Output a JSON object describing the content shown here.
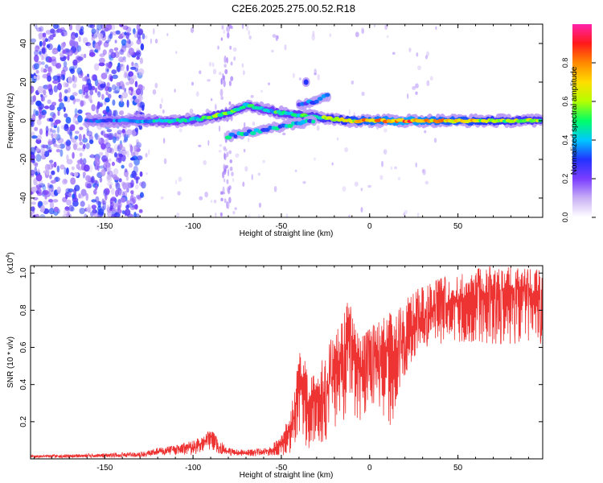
{
  "title": "C2E6.2025.275.00.52.R18",
  "chart_data": [
    {
      "type": "heatmap",
      "title": "C2E6.2025.275.00.52.R18",
      "xlabel": "Height of straight line (km)",
      "ylabel": "Frequency (Hz)",
      "xlim": [
        -192,
        98
      ],
      "ylim": [
        -50,
        50
      ],
      "xticks": [
        -150,
        -100,
        -50,
        0,
        50
      ],
      "yticks": [
        -40,
        -20,
        0,
        20,
        40
      ],
      "colorbar": {
        "label": "Normalized spectral amplitude",
        "range": [
          0.0,
          1.0
        ],
        "ticks": [
          0.0,
          0.2,
          0.4,
          0.6,
          0.8
        ],
        "colors": [
          "#ffffff",
          "#c9b0f5",
          "#7a3dff",
          "#2233ff",
          "#00c8ff",
          "#00ff66",
          "#b4ff00",
          "#ffdd00",
          "#ff8800",
          "#ff1a1a",
          "#ff22aa"
        ]
      },
      "ridge": [
        {
          "x": -160,
          "y": 0,
          "amp": 0.3
        },
        {
          "x": -140,
          "y": 0,
          "amp": 0.35
        },
        {
          "x": -125,
          "y": 0,
          "amp": 0.4
        },
        {
          "x": -110,
          "y": 0,
          "amp": 0.45
        },
        {
          "x": -95,
          "y": 1,
          "amp": 0.5
        },
        {
          "x": -80,
          "y": 4,
          "amp": 0.55
        },
        {
          "x": -70,
          "y": 8,
          "amp": 0.5
        },
        {
          "x": -60,
          "y": 6,
          "amp": 0.45
        },
        {
          "x": -50,
          "y": 4,
          "amp": 0.5
        },
        {
          "x": -40,
          "y": 3,
          "amp": 0.5
        },
        {
          "x": -30,
          "y": 2,
          "amp": 0.55
        },
        {
          "x": -20,
          "y": 1,
          "amp": 0.6
        },
        {
          "x": -10,
          "y": 0,
          "amp": 0.7
        },
        {
          "x": 0,
          "y": 0,
          "amp": 0.75
        },
        {
          "x": 20,
          "y": 0,
          "amp": 0.85
        },
        {
          "x": 40,
          "y": 0,
          "amp": 0.75
        },
        {
          "x": 60,
          "y": 0,
          "amp": 0.7
        },
        {
          "x": 80,
          "y": 0,
          "amp": 0.6
        },
        {
          "x": 98,
          "y": 0,
          "amp": 0.55
        }
      ],
      "branches": [
        {
          "points": [
            {
              "x": -80,
              "y": -8
            },
            {
              "x": -60,
              "y": -5
            },
            {
              "x": -45,
              "y": -2
            },
            {
              "x": -30,
              "y": 0
            }
          ],
          "amp": 0.45
        },
        {
          "points": [
            {
              "x": -40,
              "y": 8
            },
            {
              "x": -30,
              "y": 10
            },
            {
              "x": -22,
              "y": 14
            }
          ],
          "amp": 0.35
        },
        {
          "points": [
            {
              "x": -36,
              "y": 20
            }
          ],
          "amp": 0.3
        }
      ],
      "noise_region": {
        "xmin": -192,
        "xmax": -128,
        "amp": 0.25
      }
    },
    {
      "type": "line",
      "xlabel": "Height of straight line (km)",
      "ylabel": "SNR (10 * v/v)",
      "y_multiplier": "(x10",
      "y_multiplier_exponent": "4",
      "y_multiplier_close": ")",
      "xlim": [
        -192,
        98
      ],
      "ylim": [
        0,
        1.04
      ],
      "xticks": [
        -150,
        -100,
        -50,
        0,
        50
      ],
      "yticks": [
        0.2,
        0.4,
        0.6,
        0.8,
        1.0
      ],
      "ytick_labels": [
        "0.2",
        "0.4",
        "0.6",
        "0.8",
        "1.0"
      ],
      "line_color": "#ee3333",
      "series": [
        {
          "x": [
            -192,
            -170,
            -150,
            -130,
            -120,
            -110,
            -100,
            -95,
            -90,
            -85,
            -80,
            -75,
            -70,
            -65,
            -60,
            -55,
            -50,
            -45,
            -42,
            -40,
            -35,
            -30,
            -25,
            -20,
            -15,
            -12,
            -10,
            -5,
            0,
            5,
            10,
            15,
            20,
            25,
            30,
            40,
            50,
            60,
            70,
            80,
            90,
            98
          ],
          "y": [
            0.015,
            0.015,
            0.017,
            0.02,
            0.04,
            0.05,
            0.06,
            0.08,
            0.12,
            0.06,
            0.04,
            0.03,
            0.03,
            0.03,
            0.035,
            0.05,
            0.08,
            0.15,
            0.25,
            0.45,
            0.3,
            0.32,
            0.35,
            0.45,
            0.55,
            0.7,
            0.6,
            0.45,
            0.55,
            0.55,
            0.6,
            0.55,
            0.65,
            0.72,
            0.75,
            0.82,
            0.85,
            0.88,
            0.9,
            0.92,
            0.9,
            0.85
          ],
          "envelope_max": [
            0.02,
            0.025,
            0.03,
            0.035,
            0.06,
            0.07,
            0.1,
            0.12,
            0.16,
            0.1,
            0.06,
            0.05,
            0.05,
            0.05,
            0.06,
            0.08,
            0.13,
            0.25,
            0.4,
            0.58,
            0.5,
            0.5,
            0.55,
            0.7,
            0.8,
            0.85,
            0.8,
            0.65,
            0.7,
            0.75,
            0.8,
            0.78,
            0.85,
            0.9,
            0.93,
            0.97,
            1.0,
            1.02,
            1.04,
            1.03,
            1.02,
            1.03
          ],
          "envelope_min": [
            0.005,
            0.005,
            0.008,
            0.01,
            0.02,
            0.02,
            0.02,
            0.04,
            0.05,
            0.03,
            0.02,
            0.015,
            0.015,
            0.015,
            0.015,
            0.02,
            0.02,
            0.02,
            0.05,
            0.1,
            0.05,
            0.08,
            0.1,
            0.15,
            0.2,
            0.3,
            0.25,
            0.2,
            0.3,
            0.3,
            0.15,
            0.25,
            0.45,
            0.55,
            0.6,
            0.62,
            0.63,
            0.63,
            0.62,
            0.62,
            0.62,
            0.62
          ]
        }
      ]
    }
  ]
}
